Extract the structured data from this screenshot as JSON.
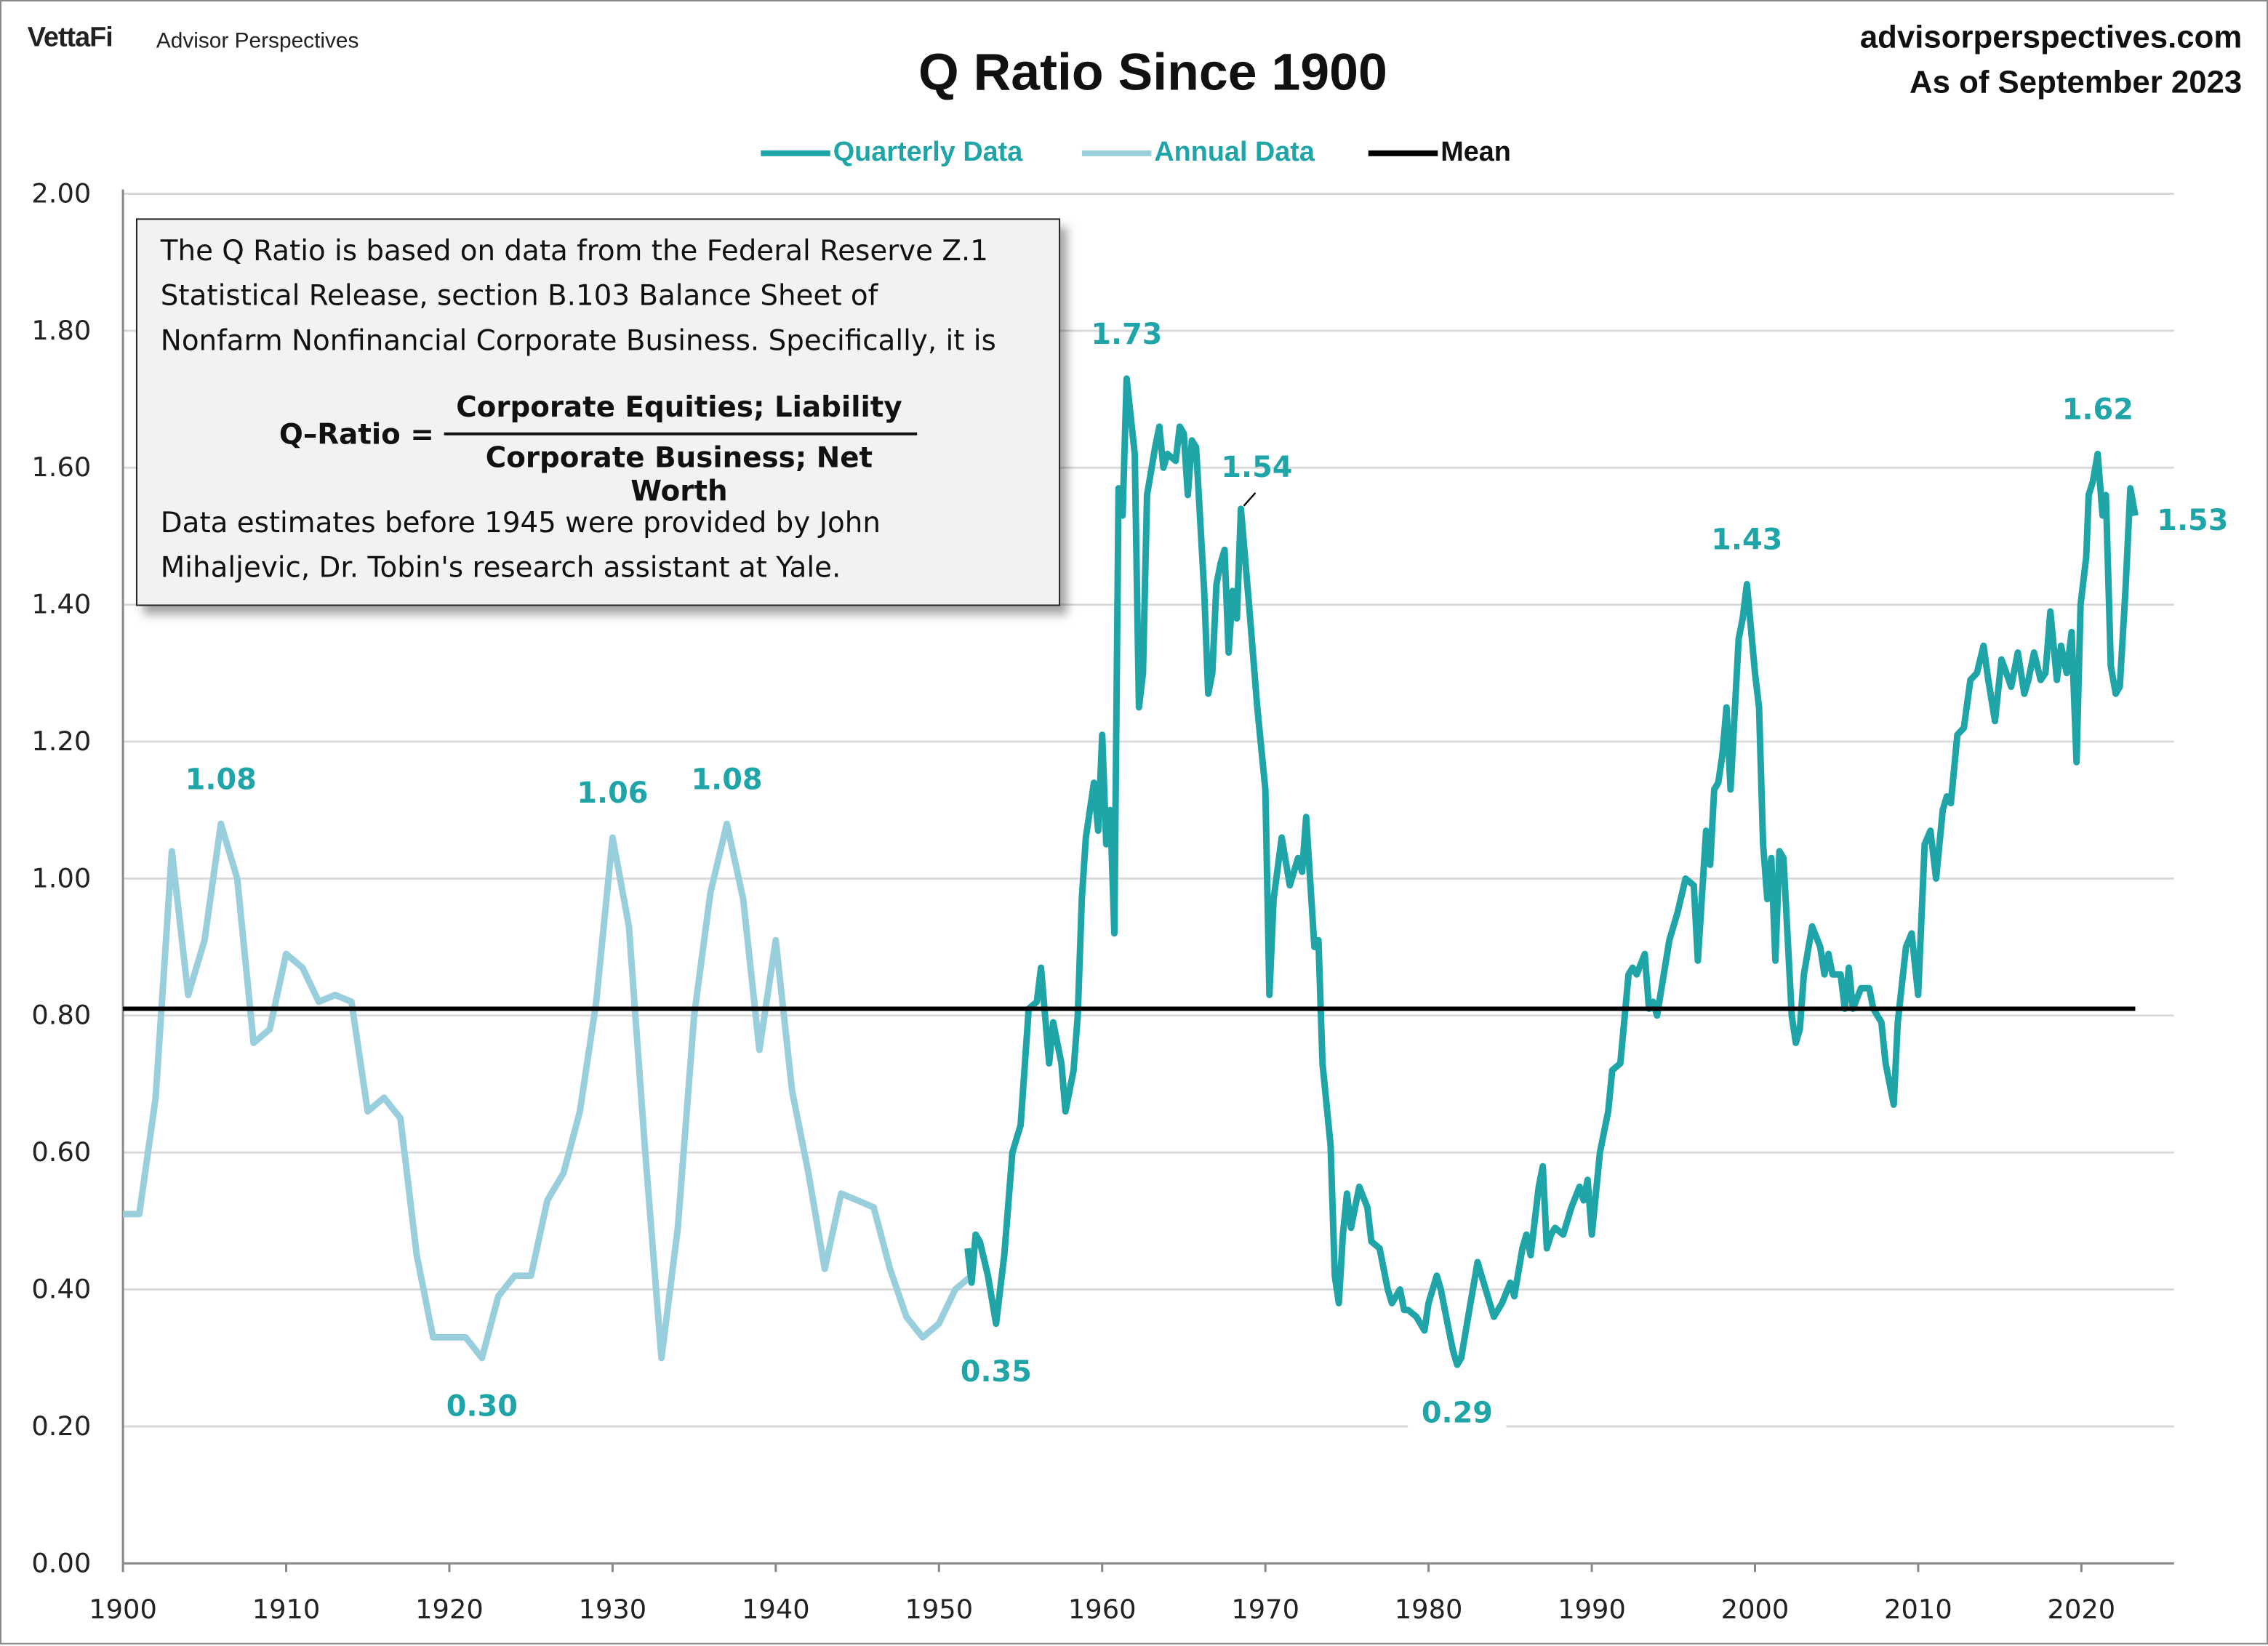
{
  "header": {
    "logo": "VettaFi",
    "brand_sub": "Advisor Perspectives",
    "title": "Q Ratio Since 1900",
    "site": "advisorperspectives.com",
    "as_of": "As of September 2023"
  },
  "note": {
    "lines": [
      "The Q Ratio is based on data from the Federal Reserve Z.1",
      "Statistical Release, section B.103 Balance Sheet of",
      "Nonfarm Nonfinancial Corporate Business. Specifically, it is"
    ],
    "formula_lhs": "Q–Ratio =",
    "formula_numerator": "Corporate Equities; Liability",
    "formula_denominator": "Corporate Business; Net Worth",
    "footer_lines": [
      "Data estimates before 1945 were provided by John",
      "Mihaljevic, Dr. Tobin's research assistant at Yale."
    ]
  },
  "colors": {
    "quarterly": "#1fa5a8",
    "annual": "#99cfdd",
    "mean": "#000000",
    "grid": "#d9d9d9"
  },
  "chart_data": {
    "type": "line",
    "title": "Q Ratio Since 1900",
    "xlim": [
      1900,
      2025
    ],
    "ylim": [
      0,
      2
    ],
    "x_ticks": [
      "1900",
      "1910",
      "1920",
      "1930",
      "1940",
      "1950",
      "1960",
      "1970",
      "1980",
      "1990",
      "2000",
      "2010",
      "2020"
    ],
    "y_ticks": [
      "0.00",
      "0.20",
      "0.40",
      "0.60",
      "0.80",
      "1.00",
      "1.20",
      "1.40",
      "1.60",
      "1.80",
      "2.00"
    ],
    "grid": true,
    "legend_position": "top",
    "legend": [
      "Quarterly Data",
      "Annual Data",
      "Mean"
    ],
    "series": [
      {
        "name": "Annual Data",
        "points": [
          [
            1900,
            0.51
          ],
          [
            1901,
            0.51
          ],
          [
            1902,
            0.68
          ],
          [
            1903,
            1.04
          ],
          [
            1904,
            0.83
          ],
          [
            1905,
            0.91
          ],
          [
            1906,
            1.08
          ],
          [
            1907,
            1.0
          ],
          [
            1908,
            0.76
          ],
          [
            1909,
            0.78
          ],
          [
            1910,
            0.89
          ],
          [
            1911,
            0.87
          ],
          [
            1912,
            0.82
          ],
          [
            1913,
            0.83
          ],
          [
            1914,
            0.82
          ],
          [
            1915,
            0.66
          ],
          [
            1916,
            0.68
          ],
          [
            1917,
            0.65
          ],
          [
            1918,
            0.45
          ],
          [
            1919,
            0.33
          ],
          [
            1920,
            0.33
          ],
          [
            1921,
            0.33
          ],
          [
            1922,
            0.3
          ],
          [
            1923,
            0.39
          ],
          [
            1924,
            0.42
          ],
          [
            1925,
            0.42
          ],
          [
            1926,
            0.53
          ],
          [
            1927,
            0.57
          ],
          [
            1928,
            0.66
          ],
          [
            1929,
            0.82
          ],
          [
            1930,
            1.06
          ],
          [
            1931,
            0.93
          ],
          [
            1932,
            0.6
          ],
          [
            1933,
            0.3
          ],
          [
            1934,
            0.49
          ],
          [
            1935,
            0.8
          ],
          [
            1936,
            0.98
          ],
          [
            1937,
            1.08
          ],
          [
            1938,
            0.97
          ],
          [
            1939,
            0.75
          ],
          [
            1940,
            0.91
          ],
          [
            1941,
            0.69
          ],
          [
            1942,
            0.57
          ],
          [
            1943,
            0.43
          ],
          [
            1944,
            0.54
          ],
          [
            1945,
            0.53
          ],
          [
            1946,
            0.52
          ],
          [
            1947,
            0.43
          ],
          [
            1948,
            0.36
          ],
          [
            1949,
            0.33
          ],
          [
            1950,
            0.35
          ],
          [
            1951,
            0.4
          ],
          [
            1952,
            0.42
          ]
        ]
      },
      {
        "name": "Quarterly Data",
        "points": [
          [
            1951.75,
            0.46
          ],
          [
            1952,
            0.41
          ],
          [
            1952.25,
            0.48
          ],
          [
            1952.5,
            0.47
          ],
          [
            1953,
            0.42
          ],
          [
            1953.5,
            0.35
          ],
          [
            1954,
            0.45
          ],
          [
            1954.5,
            0.6
          ],
          [
            1955,
            0.64
          ],
          [
            1955.5,
            0.81
          ],
          [
            1956,
            0.82
          ],
          [
            1956.25,
            0.87
          ],
          [
            1956.75,
            0.73
          ],
          [
            1957,
            0.79
          ],
          [
            1957.5,
            0.73
          ],
          [
            1957.75,
            0.66
          ],
          [
            1958.25,
            0.72
          ],
          [
            1958.5,
            0.8
          ],
          [
            1958.75,
            0.97
          ],
          [
            1959,
            1.06
          ],
          [
            1959.5,
            1.14
          ],
          [
            1959.75,
            1.07
          ],
          [
            1960,
            1.21
          ],
          [
            1960.25,
            1.05
          ],
          [
            1960.5,
            1.1
          ],
          [
            1960.75,
            0.92
          ],
          [
            1961,
            1.57
          ],
          [
            1961.25,
            1.53
          ],
          [
            1961.5,
            1.73
          ],
          [
            1962,
            1.62
          ],
          [
            1962.25,
            1.25
          ],
          [
            1962.5,
            1.3
          ],
          [
            1962.75,
            1.56
          ],
          [
            1963.25,
            1.63
          ],
          [
            1963.5,
            1.66
          ],
          [
            1963.75,
            1.6
          ],
          [
            1964,
            1.62
          ],
          [
            1964.5,
            1.61
          ],
          [
            1964.75,
            1.66
          ],
          [
            1965,
            1.65
          ],
          [
            1965.25,
            1.56
          ],
          [
            1965.5,
            1.64
          ],
          [
            1965.75,
            1.63
          ],
          [
            1966.25,
            1.42
          ],
          [
            1966.5,
            1.27
          ],
          [
            1966.75,
            1.3
          ],
          [
            1967,
            1.43
          ],
          [
            1967.25,
            1.46
          ],
          [
            1967.5,
            1.48
          ],
          [
            1967.75,
            1.33
          ],
          [
            1968,
            1.42
          ],
          [
            1968.25,
            1.38
          ],
          [
            1968.5,
            1.54
          ],
          [
            1969,
            1.4
          ],
          [
            1969.5,
            1.25
          ],
          [
            1970,
            1.13
          ],
          [
            1970.25,
            0.83
          ],
          [
            1970.5,
            0.97
          ],
          [
            1971,
            1.06
          ],
          [
            1971.5,
            0.99
          ],
          [
            1972,
            1.03
          ],
          [
            1972.25,
            1.01
          ],
          [
            1972.5,
            1.09
          ],
          [
            1973,
            0.9
          ],
          [
            1973.25,
            0.91
          ],
          [
            1973.5,
            0.73
          ],
          [
            1974,
            0.61
          ],
          [
            1974.25,
            0.42
          ],
          [
            1974.5,
            0.38
          ],
          [
            1974.75,
            0.48
          ],
          [
            1975,
            0.54
          ],
          [
            1975.25,
            0.49
          ],
          [
            1975.75,
            0.55
          ],
          [
            1976.25,
            0.52
          ],
          [
            1976.5,
            0.47
          ],
          [
            1977,
            0.46
          ],
          [
            1977.5,
            0.4
          ],
          [
            1977.75,
            0.38
          ],
          [
            1978.25,
            0.4
          ],
          [
            1978.5,
            0.37
          ],
          [
            1978.75,
            0.37
          ],
          [
            1979.25,
            0.36
          ],
          [
            1979.75,
            0.34
          ],
          [
            1980,
            0.38
          ],
          [
            1980.5,
            0.42
          ],
          [
            1980.75,
            0.4
          ],
          [
            1981.25,
            0.34
          ],
          [
            1981.5,
            0.31
          ],
          [
            1981.75,
            0.29
          ],
          [
            1982,
            0.3
          ],
          [
            1982.5,
            0.37
          ],
          [
            1983,
            0.44
          ],
          [
            1983.5,
            0.4
          ],
          [
            1984,
            0.36
          ],
          [
            1984.5,
            0.38
          ],
          [
            1985,
            0.41
          ],
          [
            1985.25,
            0.39
          ],
          [
            1985.75,
            0.46
          ],
          [
            1986,
            0.48
          ],
          [
            1986.25,
            0.45
          ],
          [
            1986.75,
            0.55
          ],
          [
            1987,
            0.58
          ],
          [
            1987.25,
            0.46
          ],
          [
            1987.5,
            0.48
          ],
          [
            1987.75,
            0.49
          ],
          [
            1988.25,
            0.48
          ],
          [
            1988.75,
            0.52
          ],
          [
            1989.25,
            0.55
          ],
          [
            1989.5,
            0.53
          ],
          [
            1989.75,
            0.56
          ],
          [
            1990,
            0.48
          ],
          [
            1990.5,
            0.6
          ],
          [
            1991,
            0.66
          ],
          [
            1991.25,
            0.72
          ],
          [
            1991.75,
            0.73
          ],
          [
            1992.25,
            0.86
          ],
          [
            1992.5,
            0.87
          ],
          [
            1992.75,
            0.86
          ],
          [
            1993.25,
            0.89
          ],
          [
            1993.5,
            0.81
          ],
          [
            1993.75,
            0.82
          ],
          [
            1994,
            0.8
          ],
          [
            1994.75,
            0.91
          ],
          [
            1995.25,
            0.95
          ],
          [
            1995.75,
            1.0
          ],
          [
            1996.25,
            0.99
          ],
          [
            1996.5,
            0.88
          ],
          [
            1997,
            1.07
          ],
          [
            1997.25,
            1.02
          ],
          [
            1997.5,
            1.13
          ],
          [
            1997.75,
            1.14
          ],
          [
            1998,
            1.18
          ],
          [
            1998.25,
            1.25
          ],
          [
            1998.5,
            1.13
          ],
          [
            1999,
            1.35
          ],
          [
            1999.25,
            1.38
          ],
          [
            1999.5,
            1.43
          ],
          [
            2000,
            1.3
          ],
          [
            2000.25,
            1.25
          ],
          [
            2000.5,
            1.05
          ],
          [
            2000.75,
            0.97
          ],
          [
            2001,
            1.03
          ],
          [
            2001.25,
            0.88
          ],
          [
            2001.5,
            1.04
          ],
          [
            2001.75,
            1.03
          ],
          [
            2002.25,
            0.8
          ],
          [
            2002.5,
            0.76
          ],
          [
            2002.75,
            0.78
          ],
          [
            2003,
            0.86
          ],
          [
            2003.5,
            0.93
          ],
          [
            2004,
            0.9
          ],
          [
            2004.25,
            0.86
          ],
          [
            2004.5,
            0.89
          ],
          [
            2004.75,
            0.86
          ],
          [
            2005.25,
            0.86
          ],
          [
            2005.5,
            0.81
          ],
          [
            2005.75,
            0.87
          ],
          [
            2006,
            0.81
          ],
          [
            2006.5,
            0.84
          ],
          [
            2007,
            0.84
          ],
          [
            2007.25,
            0.81
          ],
          [
            2007.75,
            0.79
          ],
          [
            2008,
            0.73
          ],
          [
            2008.5,
            0.67
          ],
          [
            2008.75,
            0.79
          ],
          [
            2009.25,
            0.9
          ],
          [
            2009.6,
            0.92
          ],
          [
            2010,
            0.83
          ],
          [
            2010.4,
            1.05
          ],
          [
            2010.75,
            1.07
          ],
          [
            2011.1,
            1.0
          ],
          [
            2011.5,
            1.1
          ],
          [
            2011.75,
            1.12
          ],
          [
            2012,
            1.11
          ],
          [
            2012.4,
            1.21
          ],
          [
            2012.8,
            1.22
          ],
          [
            2013.2,
            1.29
          ],
          [
            2013.6,
            1.3
          ],
          [
            2014,
            1.34
          ],
          [
            2014.3,
            1.29
          ],
          [
            2014.7,
            1.23
          ],
          [
            2015.1,
            1.32
          ],
          [
            2015.4,
            1.3
          ],
          [
            2015.7,
            1.28
          ],
          [
            2016.1,
            1.33
          ],
          [
            2016.5,
            1.27
          ],
          [
            2016.75,
            1.29
          ],
          [
            2017.1,
            1.33
          ],
          [
            2017.5,
            1.29
          ],
          [
            2017.8,
            1.3
          ],
          [
            2018.1,
            1.39
          ],
          [
            2018.5,
            1.29
          ],
          [
            2018.75,
            1.34
          ],
          [
            2019.1,
            1.3
          ],
          [
            2019.4,
            1.36
          ],
          [
            2019.7,
            1.17
          ],
          [
            2019.95,
            1.4
          ],
          [
            2020.3,
            1.47
          ],
          [
            2020.45,
            1.56
          ],
          [
            2020.7,
            1.58
          ],
          [
            2021,
            1.62
          ],
          [
            2021.3,
            1.53
          ],
          [
            2021.5,
            1.56
          ],
          [
            2021.8,
            1.31
          ],
          [
            2022.1,
            1.27
          ],
          [
            2022.35,
            1.28
          ],
          [
            2022.7,
            1.42
          ],
          [
            2023,
            1.57
          ],
          [
            2023.3,
            1.53
          ]
        ]
      },
      {
        "name": "Mean",
        "points": [
          [
            1900,
            0.81
          ],
          [
            2023.3,
            0.81
          ]
        ]
      }
    ],
    "annotations": [
      {
        "text": "1.08",
        "x": 1906,
        "y": 1.08,
        "pos": "above"
      },
      {
        "text": "0.30",
        "x": 1922,
        "y": 0.3,
        "pos": "below"
      },
      {
        "text": "1.06",
        "x": 1930,
        "y": 1.06,
        "pos": "above"
      },
      {
        "text": "1.08",
        "x": 1937,
        "y": 1.08,
        "pos": "above"
      },
      {
        "text": "0.35",
        "x": 1953.5,
        "y": 0.35,
        "pos": "below"
      },
      {
        "text": "1.73",
        "x": 1961.5,
        "y": 1.73,
        "pos": "above"
      },
      {
        "text": "1.54",
        "x": 1968.5,
        "y": 1.54,
        "pos": "above-right"
      },
      {
        "text": "0.29",
        "x": 1981.75,
        "y": 0.29,
        "pos": "below"
      },
      {
        "text": "1.43",
        "x": 1999.5,
        "y": 1.43,
        "pos": "above"
      },
      {
        "text": "1.62",
        "x": 2021,
        "y": 1.62,
        "pos": "above"
      },
      {
        "text": "1.53",
        "x": 2023.3,
        "y": 1.53,
        "pos": "right"
      }
    ]
  }
}
